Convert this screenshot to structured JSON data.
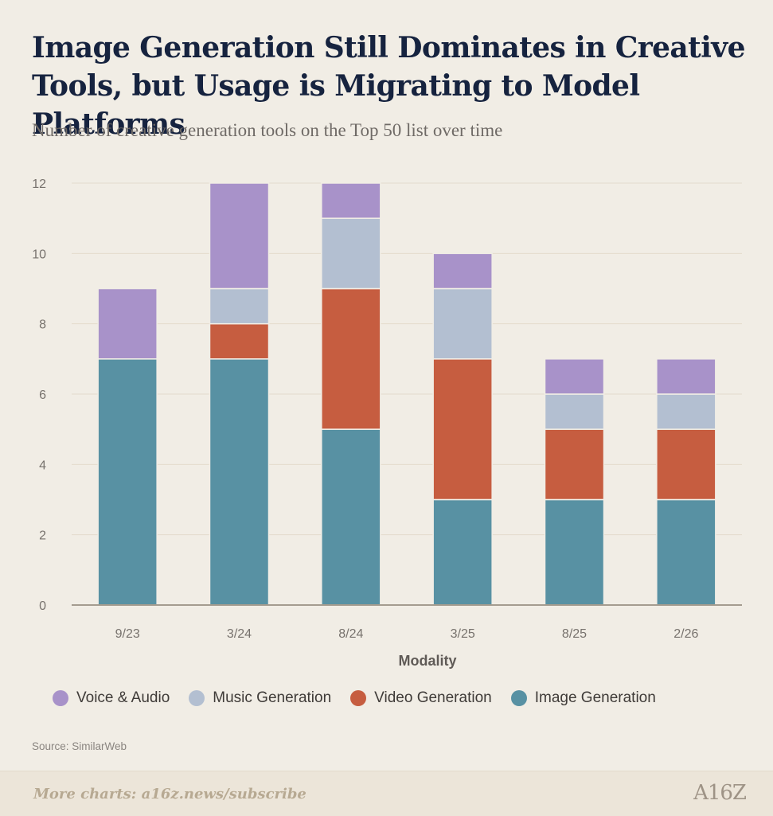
{
  "header": {
    "title": "Image Generation Still Dominates in Creative Tools, but Usage is Migrating to Model Platforms",
    "subtitle": "Number of creative generation tools on the Top 50 list over time"
  },
  "chart_data": {
    "type": "bar",
    "stacked": true,
    "categories": [
      "9/23",
      "3/24",
      "8/24",
      "3/25",
      "8/25",
      "2/26"
    ],
    "series": [
      {
        "name": "Image Generation",
        "color": "#5891a3",
        "values": [
          7,
          7,
          5,
          3,
          3,
          3
        ]
      },
      {
        "name": "Video Generation",
        "color": "#c65d40",
        "values": [
          0,
          1,
          4,
          4,
          2,
          2
        ]
      },
      {
        "name": "Music Generation",
        "color": "#b3bfd1",
        "values": [
          0,
          1,
          2,
          2,
          1,
          1
        ]
      },
      {
        "name": "Voice & Audio",
        "color": "#a892c9",
        "values": [
          2,
          3,
          1,
          1,
          1,
          1
        ]
      }
    ],
    "xlabel": "Modality",
    "ylabel": "",
    "ylim": [
      0,
      12
    ],
    "yticks": [
      0,
      2,
      4,
      6,
      8,
      10,
      12
    ],
    "grid": true,
    "legend_placement": "bottom"
  },
  "legend": {
    "items": [
      {
        "label": "Voice & Audio",
        "color": "#a892c9"
      },
      {
        "label": "Music Generation",
        "color": "#b3bfd1"
      },
      {
        "label": "Video Generation",
        "color": "#c65d40"
      },
      {
        "label": "Image Generation",
        "color": "#5891a3"
      }
    ]
  },
  "source": "Source: SimilarWeb",
  "footer": {
    "link_text": "More charts: a16z.news/subscribe",
    "logo_text": "A16Z"
  }
}
